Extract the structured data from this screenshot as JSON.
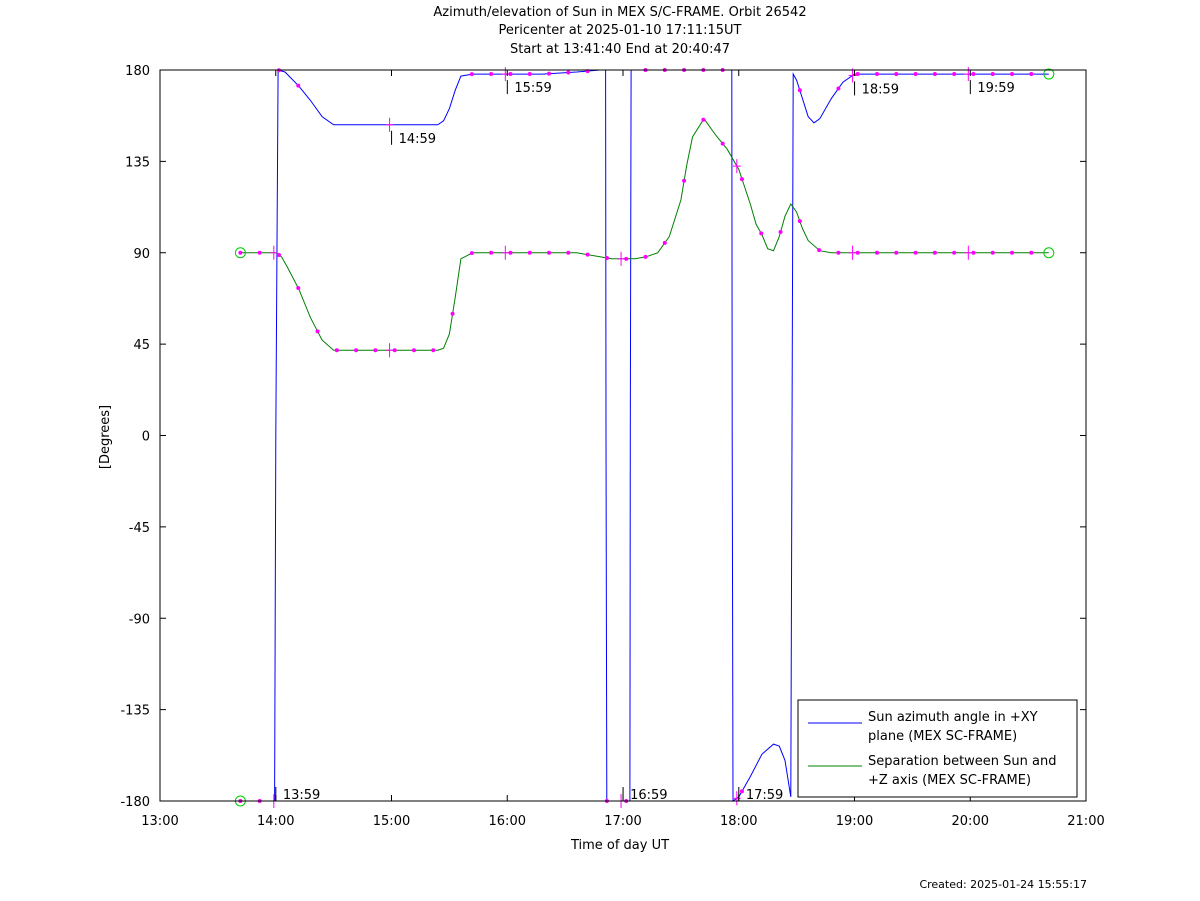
{
  "figure": {
    "title_lines": [
      "Azimuth/elevation of Sun in MEX S/C-FRAME.  Orbit 26542",
      "Pericenter at 2025-01-10 17:11:15UT",
      "Start at 13:41:40 End at 20:40:47"
    ],
    "created": "Created: 2025-01-24 15:55:17"
  },
  "chart_data": {
    "type": "line",
    "xlabel": "Time of day UT",
    "ylabel": "[Degrees]",
    "x_unit": "hours of day UT",
    "xlim": [
      13.0,
      21.0
    ],
    "ylim": [
      -180,
      180
    ],
    "x_ticks": [
      13,
      14,
      15,
      16,
      17,
      18,
      19,
      20,
      21
    ],
    "x_tick_labels": [
      "13:00",
      "14:00",
      "15:00",
      "16:00",
      "17:00",
      "18:00",
      "19:00",
      "20:00",
      "21:00"
    ],
    "y_ticks": [
      180,
      135,
      90,
      45,
      0,
      -45,
      -90,
      -135,
      -180
    ],
    "y_tick_labels": [
      "180",
      "135",
      "90",
      "45",
      "0",
      "-45",
      "-90",
      "-135",
      "-180"
    ],
    "grid": false,
    "legend_position": "bottom-right",
    "series": [
      {
        "name": "Sun azimuth angle in +XY plane (MEX SC-FRAME)",
        "legend_lines": [
          "Sun azimuth angle in +XY",
          "plane (MEX SC-FRAME)"
        ],
        "color": "#0000ff",
        "x": [
          13.6944,
          13.9,
          13.98,
          13.99,
          14.0,
          14.02,
          14.08,
          14.2,
          14.3,
          14.4,
          14.5,
          14.6,
          14.8,
          15.0,
          15.2,
          15.3,
          15.4,
          15.45,
          15.5,
          15.55,
          15.6,
          15.7,
          16.0,
          16.3,
          16.6,
          16.8,
          16.85,
          16.853,
          16.86,
          16.9,
          17.0,
          17.05,
          17.06,
          17.063,
          17.07,
          17.15,
          17.2,
          17.3,
          17.5,
          17.7,
          17.9,
          17.94,
          17.943,
          17.95,
          18.0,
          18.1,
          18.2,
          18.3,
          18.35,
          18.4,
          18.45,
          18.46,
          18.47,
          18.5,
          18.55,
          18.6,
          18.65,
          18.7,
          18.8,
          18.9,
          19.0,
          19.2,
          19.5,
          19.8,
          20.0,
          20.3,
          20.6789
        ],
        "y": [
          -180,
          -180,
          -180,
          -180,
          0,
          180,
          179,
          172,
          165,
          157,
          153,
          153,
          153,
          153,
          153,
          153,
          153,
          155,
          161,
          170,
          177,
          178,
          178,
          178,
          179,
          180,
          180,
          0,
          -180,
          -180,
          -180,
          -180,
          -180,
          0,
          180,
          180,
          180,
          180,
          180,
          180,
          180,
          180,
          0,
          -180,
          -178,
          -168,
          -157,
          -152,
          -153,
          -160,
          -178,
          0,
          178,
          175,
          166,
          157,
          154,
          156,
          166,
          174,
          178,
          178,
          178,
          178,
          178,
          178,
          178
        ]
      },
      {
        "name": "Separation between Sun and +Z axis (MEX SC-FRAME)",
        "legend_lines": [
          "Separation between Sun and",
          "+Z axis (MEX SC-FRAME)"
        ],
        "color": "#008000",
        "x": [
          13.6944,
          13.8,
          13.9,
          14.0,
          14.05,
          14.1,
          14.2,
          14.3,
          14.4,
          14.5,
          14.6,
          14.8,
          15.0,
          15.2,
          15.3,
          15.4,
          15.45,
          15.5,
          15.55,
          15.6,
          15.7,
          16.0,
          16.3,
          16.6,
          16.8,
          16.9,
          17.0,
          17.1,
          17.2,
          17.3,
          17.4,
          17.5,
          17.55,
          17.6,
          17.7,
          17.8,
          17.9,
          18.0,
          18.1,
          18.15,
          18.2,
          18.25,
          18.3,
          18.35,
          18.4,
          18.45,
          18.5,
          18.55,
          18.6,
          18.7,
          18.8,
          19.0,
          19.3,
          19.6,
          20.0,
          20.3,
          20.6789
        ],
        "y": [
          90,
          90,
          90,
          90,
          88,
          83,
          72,
          58,
          47,
          42,
          42,
          42,
          42,
          42,
          42,
          42,
          43,
          50,
          68,
          87,
          90,
          90,
          90,
          90,
          88,
          87,
          87,
          87,
          88,
          90,
          98,
          116,
          133,
          147,
          156,
          148,
          141,
          131,
          114,
          104,
          99,
          92,
          91,
          98,
          108,
          114,
          110,
          102,
          96,
          91,
          90,
          90,
          90,
          90,
          90,
          90,
          90
        ]
      }
    ],
    "marker_color": "#ff00ff",
    "tick_marker_color": "#ff00ff",
    "endpoint_marker_color": "#00cc00",
    "time_annotations": [
      {
        "label": "13:59",
        "x": 13.9833,
        "series": 0
      },
      {
        "label": "14:59",
        "x": 14.9833,
        "series": 0
      },
      {
        "label": "15:59",
        "x": 15.9833,
        "series": 0
      },
      {
        "label": "16:59",
        "x": 16.9833,
        "series": 0
      },
      {
        "label": "17:59",
        "x": 17.9833,
        "series": 0
      },
      {
        "label": "18:59",
        "x": 18.9833,
        "series": 0
      },
      {
        "label": "19:59",
        "x": 19.9833,
        "series": 0
      }
    ]
  }
}
